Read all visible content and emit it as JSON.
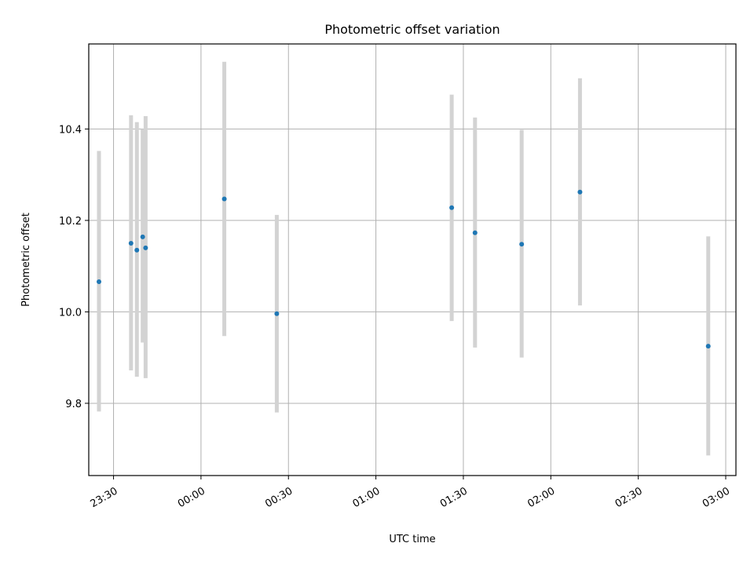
{
  "chart_data": {
    "type": "scatter",
    "title": "Photometric offset variation",
    "xlabel": "UTC time",
    "ylabel": "Photometric offset",
    "x_ticks": [
      "23:30",
      "00:00",
      "00:30",
      "01:00",
      "01:30",
      "02:00",
      "02:30",
      "03:00"
    ],
    "y_ticks": [
      "9.8",
      "10.0",
      "10.2",
      "10.4"
    ],
    "grid": true,
    "colors": {
      "point": "#1f77b4",
      "errorbar": "#d3d3d3",
      "grid": "#b0b0b0"
    },
    "series": [
      {
        "points": [
          {
            "time": "23:25",
            "y": 10.066,
            "yerr_low": 9.782,
            "yerr_high": 10.352
          },
          {
            "time": "23:36",
            "y": 10.15,
            "yerr_low": 9.872,
            "yerr_high": 10.43
          },
          {
            "time": "23:38",
            "y": 10.135,
            "yerr_low": 9.858,
            "yerr_high": 10.415
          },
          {
            "time": "23:40",
            "y": 10.164,
            "yerr_low": 9.933,
            "yerr_high": 10.4
          },
          {
            "time": "23:41",
            "y": 10.14,
            "yerr_low": 9.855,
            "yerr_high": 10.428
          },
          {
            "time": "00:08",
            "y": 10.247,
            "yerr_low": 9.947,
            "yerr_high": 10.547
          },
          {
            "time": "00:26",
            "y": 9.996,
            "yerr_low": 9.78,
            "yerr_high": 10.212
          },
          {
            "time": "01:26",
            "y": 10.228,
            "yerr_low": 9.98,
            "yerr_high": 10.475
          },
          {
            "time": "01:34",
            "y": 10.173,
            "yerr_low": 9.922,
            "yerr_high": 10.425
          },
          {
            "time": "01:50",
            "y": 10.148,
            "yerr_low": 9.9,
            "yerr_high": 10.398
          },
          {
            "time": "02:10",
            "y": 10.262,
            "yerr_low": 10.014,
            "yerr_high": 10.511
          },
          {
            "time": "02:54",
            "y": 9.925,
            "yerr_low": 9.686,
            "yerr_high": 10.165
          }
        ]
      }
    ]
  }
}
